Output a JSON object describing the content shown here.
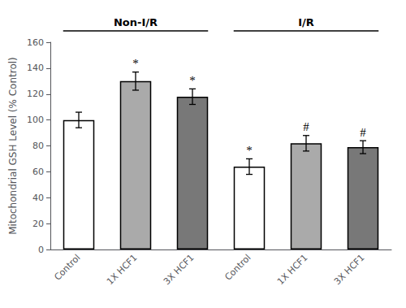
{
  "chart_data": {
    "type": "bar",
    "categories": [
      "Control",
      "1X HCF1",
      "3X HCF1",
      "Control",
      "1X HCF1",
      "3X HCF1"
    ],
    "values": [
      100,
      130,
      118,
      64,
      82,
      79
    ],
    "errors": [
      6,
      7,
      6,
      6,
      6,
      5
    ],
    "colors": [
      "white",
      "#aaaaaa",
      "#787878",
      "white",
      "#aaaaaa",
      "#787878"
    ],
    "annotations": [
      null,
      "*",
      "*",
      "*",
      "#",
      "#"
    ],
    "groups": [
      "Non-I/R",
      "Non-I/R",
      "Non-I/R",
      "I/R",
      "I/R",
      "I/R"
    ],
    "ylabel": "Mitochondrial GSH Level (% Control)",
    "ylim": [
      0,
      160
    ],
    "yticks": [
      0,
      20,
      40,
      60,
      80,
      100,
      120,
      140,
      160
    ],
    "grid": false
  }
}
